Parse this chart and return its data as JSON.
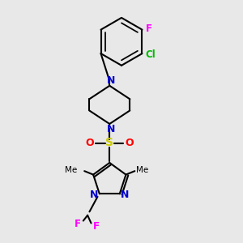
{
  "bg_color": "#e8e8e8",
  "bond_color": "#000000",
  "N_color": "#0000cc",
  "O_color": "#ff0000",
  "S_color": "#cccc00",
  "F_color": "#ff00ff",
  "Cl_color": "#00bb00",
  "lw": 1.5,
  "fig_size": [
    3.0,
    3.0
  ],
  "dpi": 100,
  "xlim": [
    0,
    10
  ],
  "ylim": [
    0,
    10
  ]
}
